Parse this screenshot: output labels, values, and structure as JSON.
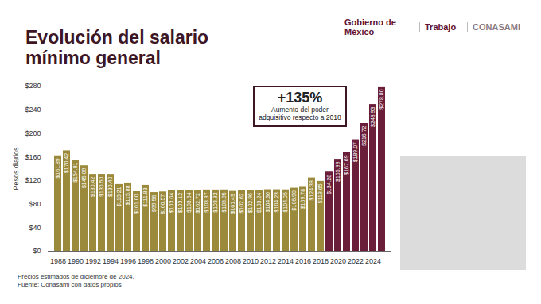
{
  "chart_data": {
    "type": "bar",
    "title": "Evolución del salario mínimo general",
    "logos": [
      "Gobierno de México",
      "Trabajo",
      "CONASAMI"
    ],
    "y_label": "Pesos diarios",
    "annotations": [
      "+135%",
      "Aumento del poder adquisitivo respecto a 2018"
    ],
    "notes": [
      "Precios estimados de diciembre de 2024.",
      "Fuente: Conasami con datos propios"
    ],
    "categories": [
      "1988",
      null,
      "1990",
      null,
      "1992",
      null,
      "1994",
      null,
      "1996",
      null,
      "1998",
      null,
      "2000",
      null,
      "2002",
      null,
      "2004",
      null,
      "2006",
      null,
      "2008",
      null,
      "2010",
      null,
      "2012",
      null,
      "2014",
      null,
      "2016",
      null,
      "2018",
      null,
      "2020",
      null,
      "2022",
      null,
      "2024",
      null
    ],
    "values": [
      161.89,
      170.42,
      154.81,
      145.09,
      130.42,
      130.5,
      130.4,
      113.21,
      115.88,
      101.0,
      111.83,
      99.56,
      100.57,
      103.04,
      103.12,
      103.64,
      102.72,
      103.87,
      103.82,
      103.95,
      101.49,
      102.62,
      102.96,
      103.24,
      104.3,
      104.23,
      104.05,
      106.9,
      109.78,
      124.38,
      118.65,
      134.28,
      155.99,
      167.09,
      189.07,
      216.72,
      248.93,
      278.8
    ],
    "value_labels": [
      "$161.89",
      "$170.42",
      "$154.81",
      "$145.09",
      "$130.42",
      "$130.50",
      "$130.40",
      "$113.21",
      "$115.88",
      "$101.00",
      "$111.83",
      "$99.56",
      "$100.57",
      "$103.04",
      "$103.12",
      "$103.64",
      "$102.72",
      "$103.87",
      "$103.82",
      "$103.95",
      "$101.49",
      "$102.62",
      "$102.96",
      "$103.24",
      "$104.30",
      "$104.23",
      "$104.05",
      "$106.90",
      "$109.78",
      "$124.38",
      "$118.65",
      "$134.28",
      "$155.99",
      "$167.09",
      "$189.07",
      "$216.72",
      "$248.93",
      "$278.80"
    ],
    "colors": [
      "#9b8a3c",
      "#9b8a3c",
      "#9b8a3c",
      "#9b8a3c",
      "#9b8a3c",
      "#9b8a3c",
      "#9b8a3c",
      "#9b8a3c",
      "#9b8a3c",
      "#9b8a3c",
      "#9b8a3c",
      "#9b8a3c",
      "#9b8a3c",
      "#9b8a3c",
      "#9b8a3c",
      "#9b8a3c",
      "#9b8a3c",
      "#9b8a3c",
      "#9b8a3c",
      "#9b8a3c",
      "#9b8a3c",
      "#9b8a3c",
      "#9b8a3c",
      "#9b8a3c",
      "#9b8a3c",
      "#9b8a3c",
      "#9b8a3c",
      "#9b8a3c",
      "#9b8a3c",
      "#9b8a3c",
      "#9b8a3c",
      "#6b1e3a",
      "#6b1e3a",
      "#6b1e3a",
      "#6b1e3a",
      "#6b1e3a",
      "#6b1e3a",
      "#6b1e3a"
    ],
    "ylim": [
      0,
      280
    ],
    "yticks": [
      {
        "value": 0,
        "label": "$0"
      },
      {
        "value": 40,
        "label": "$40"
      },
      {
        "value": 80,
        "label": "$80"
      },
      {
        "value": 120,
        "label": "$120"
      },
      {
        "value": 160,
        "label": "$160"
      },
      {
        "value": 200,
        "label": "$200"
      },
      {
        "value": 240,
        "label": "$240"
      },
      {
        "value": 280,
        "label": "$280"
      }
    ],
    "grid": false,
    "data_labels": true
  }
}
